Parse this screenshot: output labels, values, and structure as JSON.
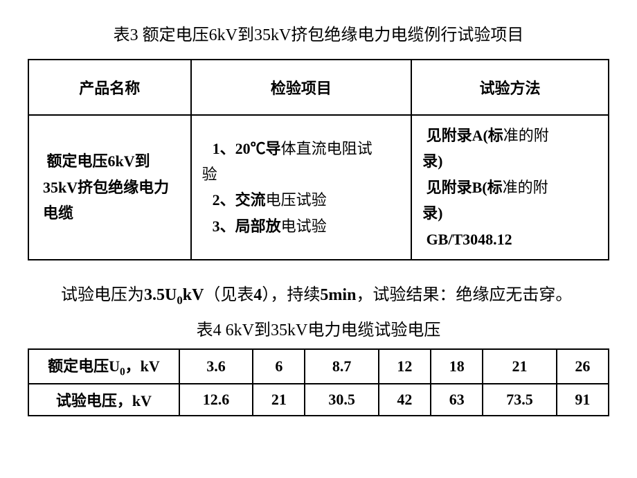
{
  "title": "表3  额定电压6kV到35kV挤包绝缘电力电缆例行试验项目",
  "table3": {
    "headers": {
      "col1": "产品名称",
      "col2": "检验项目",
      "col3": "试验方法"
    },
    "row": {
      "product_line1": "额定电压6kV到",
      "product_line2": "35kV挤包绝缘电力电缆",
      "item1_prefix": "1、20℃导",
      "item1_suffix": "体直流电阻试",
      "item1_end": "验",
      "item2_prefix": "2、交流",
      "item2_suffix": "电压试验",
      "item3_prefix": "3、局部放",
      "item3_suffix": "电试验",
      "method1_prefix": "见附录A(标",
      "method1_suffix": "准的附",
      "method1_end": "录)",
      "method2_prefix": "见附录B(标",
      "method2_suffix": "准的附",
      "method2_end": "录)",
      "method3": "GB/T3048.12"
    }
  },
  "description_part1": "试验电压为",
  "description_bold1": "3.5U",
  "description_sub": "0",
  "description_bold2": "kV",
  "description_part2": "（见表",
  "description_bold3": "4",
  "description_part3": "），持续",
  "description_bold4": "5min",
  "description_part4": "，试验结果：绝缘应无击穿。",
  "table4_title": "表4    6kV到35kV电力电缆试验电压",
  "table4": {
    "row_labels": {
      "row1_prefix": "额定电压U",
      "row1_sub": "0",
      "row1_suffix": "，kV",
      "row2": "试验电压，kV"
    },
    "columns": [
      "3.6",
      "6",
      "8.7",
      "12",
      "18",
      "21",
      "26"
    ],
    "values": [
      "12.6",
      "21",
      "30.5",
      "42",
      "63",
      "73.5",
      "91"
    ]
  }
}
